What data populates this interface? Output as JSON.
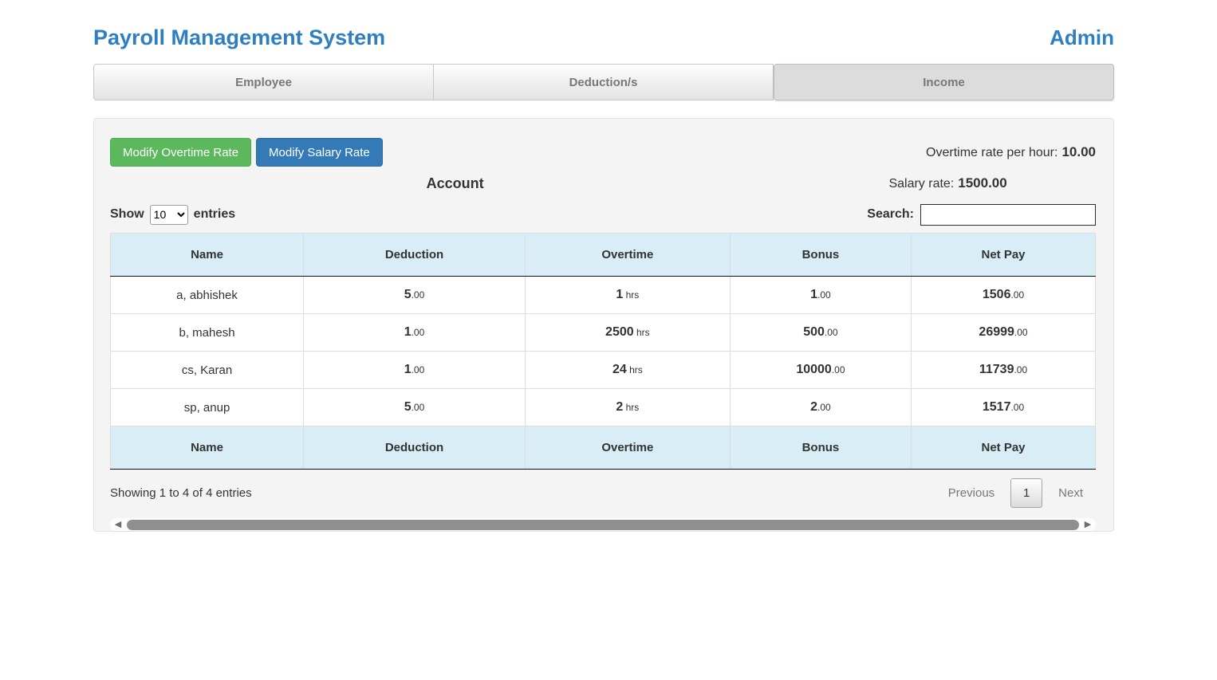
{
  "header": {
    "title": "Payroll Management System",
    "user": "Admin"
  },
  "tabs": [
    {
      "label": "Employee",
      "active": false
    },
    {
      "label": "Deduction/s",
      "active": false
    },
    {
      "label": "Income",
      "active": true
    }
  ],
  "toolbar": {
    "modify_overtime_label": "Modify Overtime Rate",
    "modify_salary_label": "Modify Salary Rate",
    "overtime_rate_label": "Overtime rate per hour:",
    "overtime_rate_value": "10.00",
    "account_heading": "Account",
    "salary_rate_label": "Salary rate:",
    "salary_rate_value": "1500.00"
  },
  "table_controls": {
    "show_label": "Show",
    "entries_label": "entries",
    "page_length": "10",
    "search_label": "Search:",
    "search_value": ""
  },
  "table": {
    "columns": [
      "Name",
      "Deduction",
      "Overtime",
      "Bonus",
      "Net Pay"
    ],
    "rows": [
      {
        "name": "a, abhishek",
        "values": [
          {
            "main": "5",
            "suffix": ".00"
          },
          {
            "main": "1",
            "suffix": " hrs"
          },
          {
            "main": "1",
            "suffix": ".00"
          },
          {
            "main": "1506",
            "suffix": ".00"
          }
        ]
      },
      {
        "name": "b, mahesh",
        "values": [
          {
            "main": "1",
            "suffix": ".00"
          },
          {
            "main": "2500",
            "suffix": " hrs"
          },
          {
            "main": "500",
            "suffix": ".00"
          },
          {
            "main": "26999",
            "suffix": ".00"
          }
        ]
      },
      {
        "name": "cs, Karan",
        "values": [
          {
            "main": "1",
            "suffix": ".00"
          },
          {
            "main": "24",
            "suffix": " hrs"
          },
          {
            "main": "10000",
            "suffix": ".00"
          },
          {
            "main": "11739",
            "suffix": ".00"
          }
        ]
      },
      {
        "name": "sp, anup",
        "values": [
          {
            "main": "5",
            "suffix": ".00"
          },
          {
            "main": "2",
            "suffix": " hrs"
          },
          {
            "main": "2",
            "suffix": ".00"
          },
          {
            "main": "1517",
            "suffix": ".00"
          }
        ]
      }
    ]
  },
  "footer": {
    "info": "Showing 1 to 4 of 4 entries",
    "previous_label": "Previous",
    "page_number": "1",
    "next_label": "Next"
  },
  "icons": {
    "scroll_left": "◀",
    "scroll_right": "▶"
  },
  "colors": {
    "brand_blue": "#2e7fc1",
    "button_green": "#5cb85c",
    "button_blue": "#337ab7",
    "table_header_bg": "#d9edf7",
    "panel_bg": "#f4f4f4",
    "tab_text": "#777777"
  }
}
